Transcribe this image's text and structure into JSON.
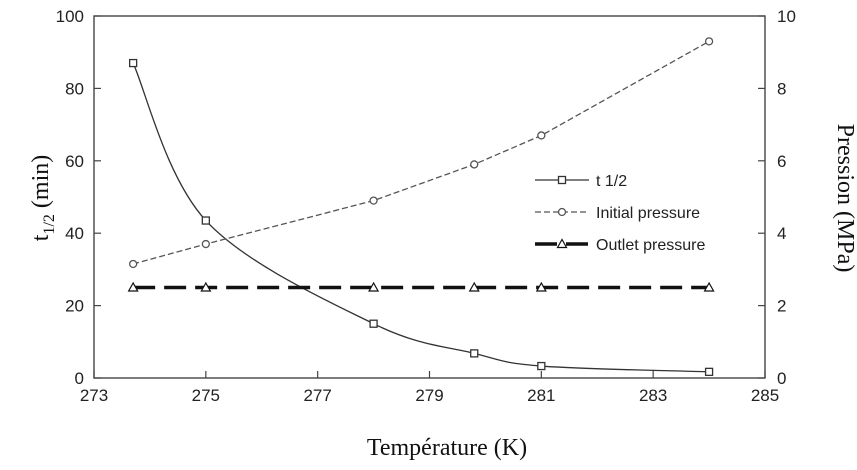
{
  "chart_data": {
    "type": "line",
    "xlabel": "Température (K)",
    "ylabel_main": "t",
    "ylabel_sub": "1/2",
    "ylabel_unit": " (min)",
    "y2label": "Pression (MPa)",
    "xlim": [
      273,
      285
    ],
    "ylim": [
      0,
      100
    ],
    "y2lim": [
      0,
      10
    ],
    "x_ticks": [
      273,
      275,
      277,
      279,
      281,
      283,
      285
    ],
    "y_ticks": [
      0,
      20,
      40,
      60,
      80,
      100
    ],
    "y2_ticks": [
      0,
      2,
      4,
      6,
      8,
      10
    ],
    "grid": false,
    "legend_position": "right",
    "series": [
      {
        "name": "t 1/2",
        "axis": "left",
        "marker": "square",
        "line_style": "solid",
        "color": "#333333",
        "x": [
          273.7,
          275.0,
          278.0,
          279.8,
          281.0,
          284.0
        ],
        "y": [
          87,
          43.5,
          15,
          6.8,
          3.3,
          1.7
        ]
      },
      {
        "name": "Initial pressure",
        "axis": "right",
        "marker": "circle",
        "line_style": "dashed",
        "color": "#555555",
        "x": [
          273.7,
          275.0,
          278.0,
          279.8,
          281.0,
          284.0
        ],
        "y": [
          3.15,
          3.7,
          4.9,
          5.9,
          6.7,
          9.3
        ]
      },
      {
        "name": "Outlet pressure",
        "axis": "right",
        "marker": "triangle",
        "line_style": "long-dash",
        "color": "#111111",
        "x": [
          273.7,
          275.0,
          278.0,
          279.8,
          281.0,
          284.0
        ],
        "y": [
          2.5,
          2.5,
          2.5,
          2.5,
          2.5,
          2.5
        ]
      }
    ]
  }
}
